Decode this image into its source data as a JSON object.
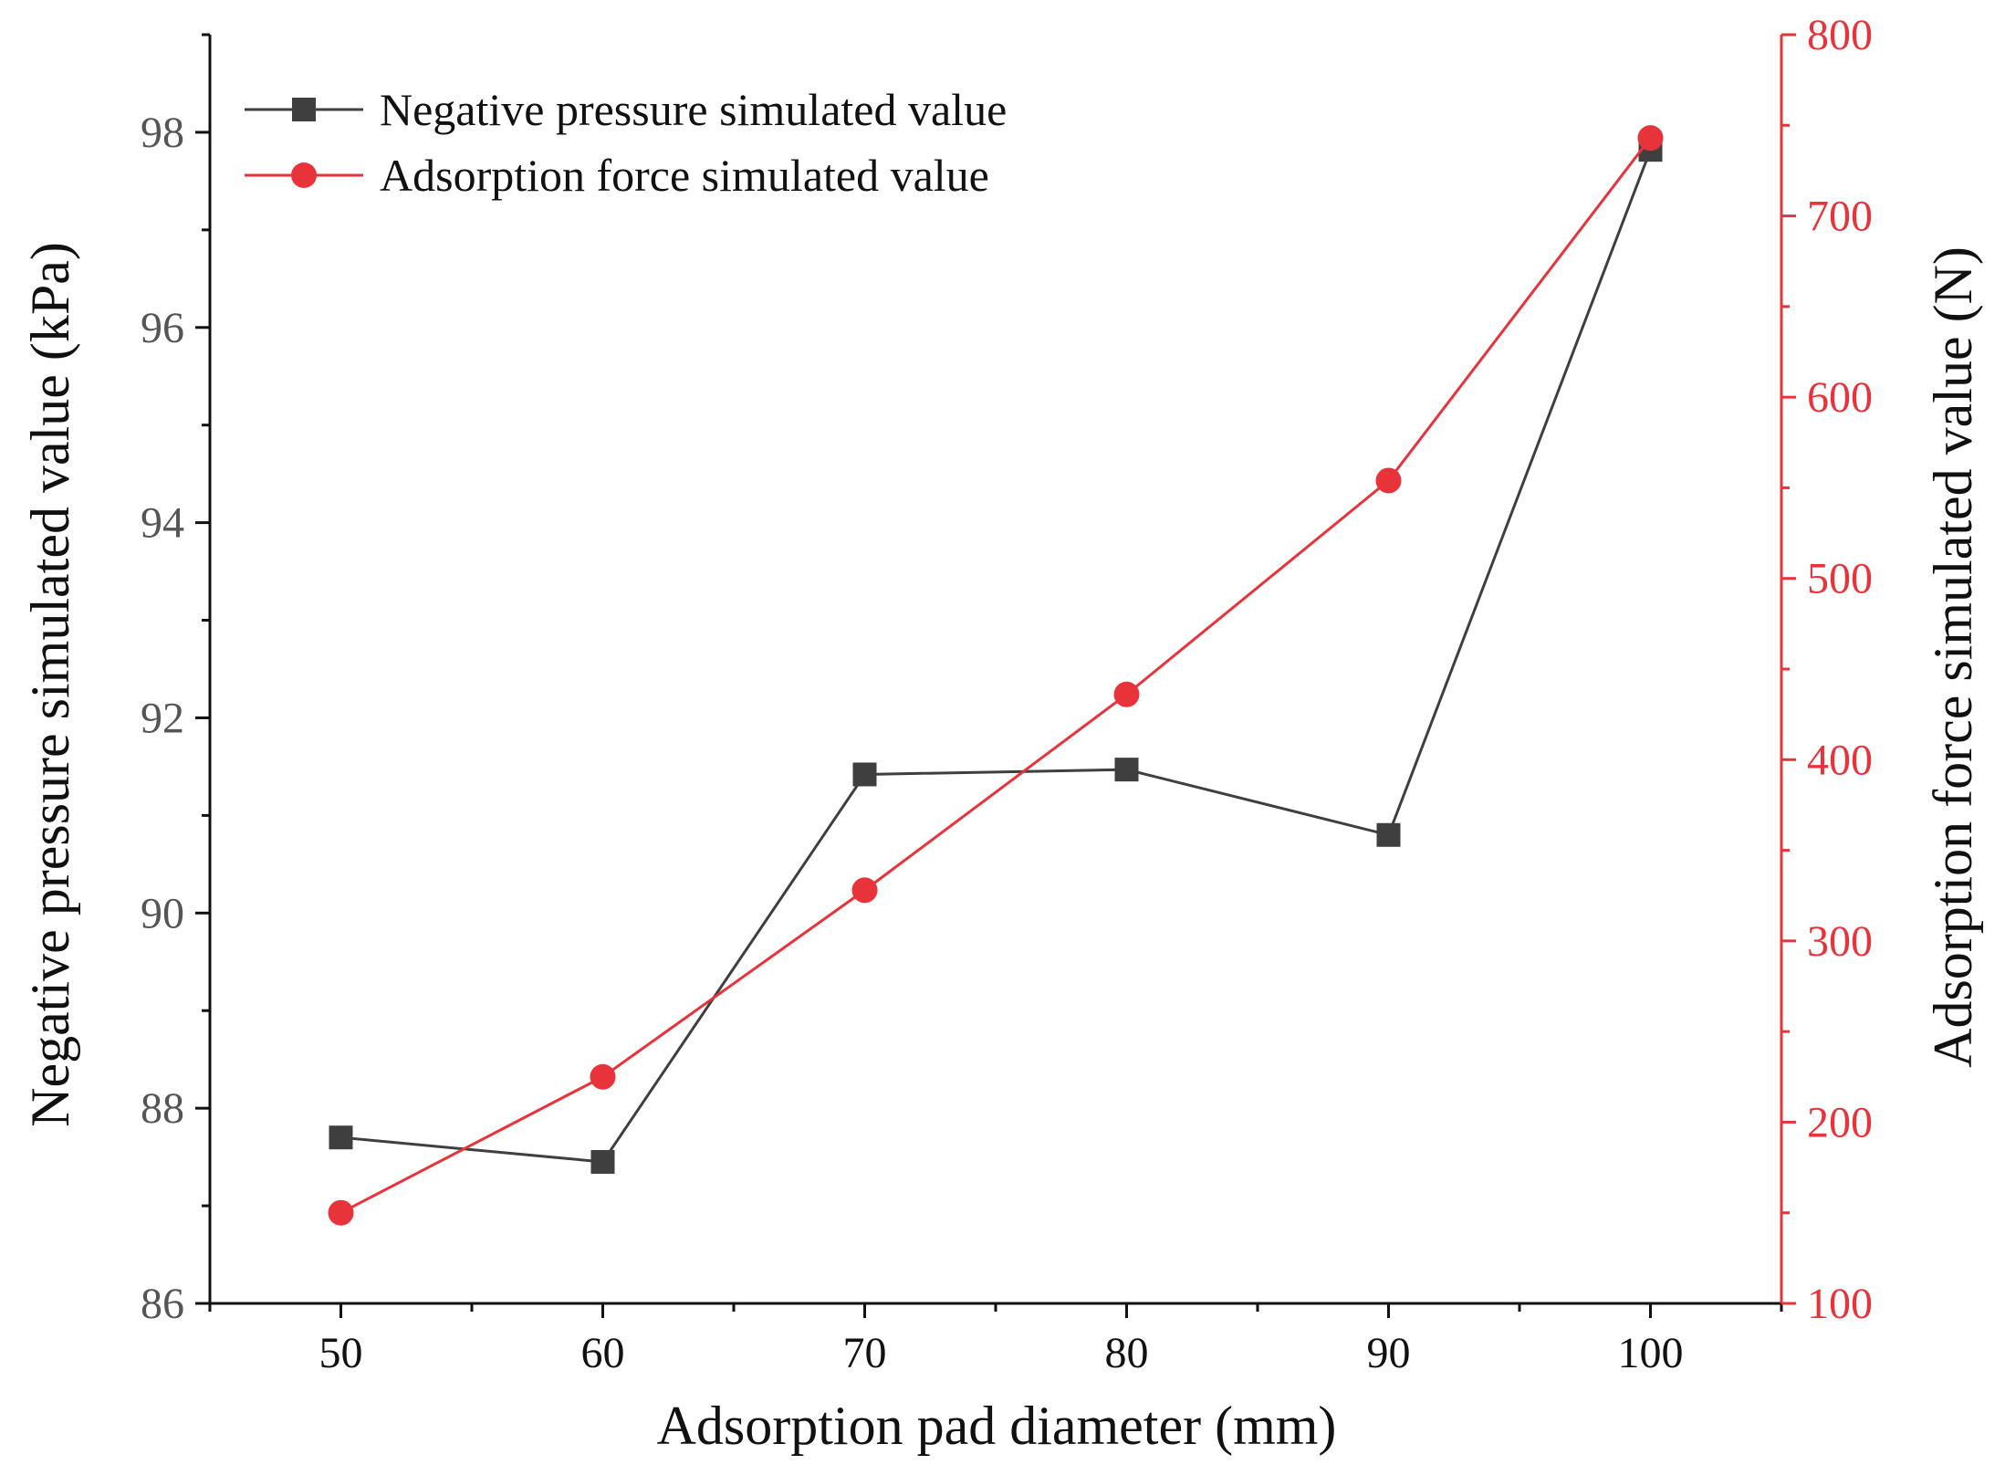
{
  "chart_data": {
    "type": "line",
    "title": "",
    "xlabel": "Adsorption pad diameter (mm)",
    "ylabel": "Negative pressure simulated value (kPa)",
    "y2label": "Adsorption force simulated value (N)",
    "x": [
      50,
      60,
      70,
      80,
      90,
      100
    ],
    "xlim": [
      45,
      105
    ],
    "xticks": [
      50,
      60,
      70,
      80,
      90,
      100
    ],
    "ylim": [
      86,
      99
    ],
    "yticks": [
      86,
      88,
      90,
      92,
      94,
      96,
      98
    ],
    "y2lim": [
      100,
      800
    ],
    "y2ticks": [
      100,
      200,
      300,
      400,
      500,
      600,
      700,
      800
    ],
    "grid": false,
    "legend_position": "top-left",
    "series": [
      {
        "name": "Negative pressure simulated value",
        "axis": "left",
        "marker": "square",
        "color": "#3f3f3f",
        "values": [
          87.7,
          87.45,
          91.42,
          91.47,
          90.8,
          97.82
        ]
      },
      {
        "name": "Adsorption force simulated value",
        "axis": "right",
        "marker": "circle",
        "color": "#e8333b",
        "values": [
          150,
          225,
          328,
          436,
          554,
          743
        ]
      }
    ]
  }
}
